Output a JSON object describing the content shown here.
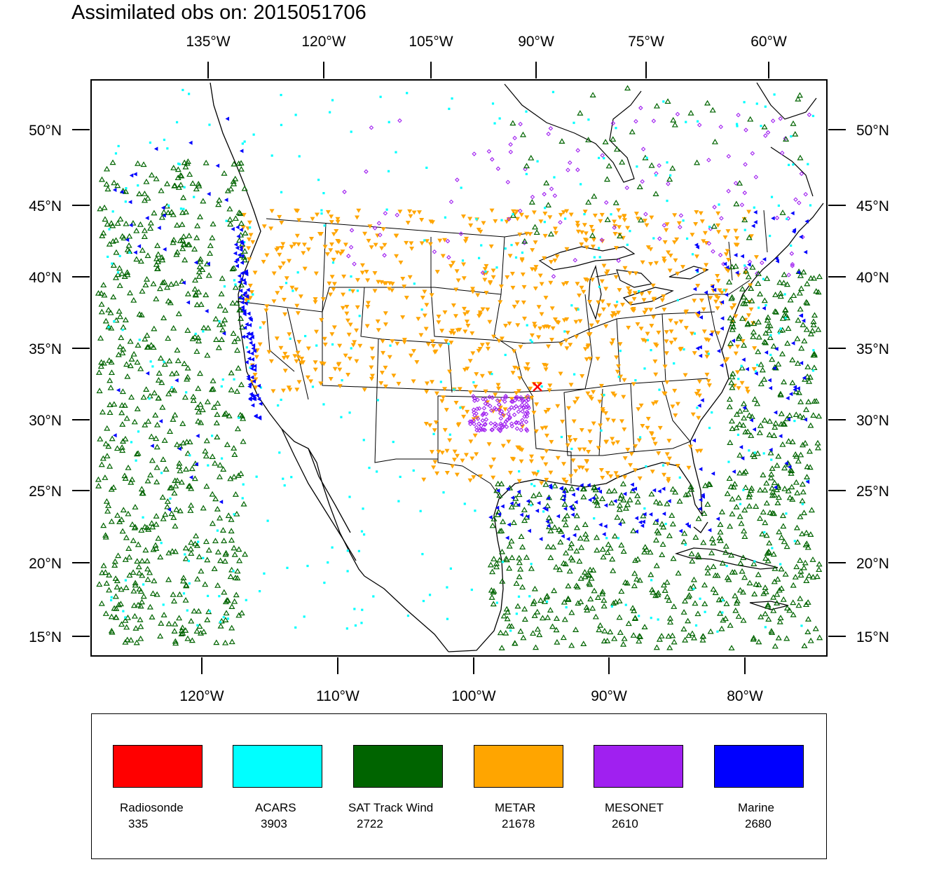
{
  "title": "Assimilated obs on: 2015051706",
  "axes": {
    "top_lon_labels": [
      "135°W",
      "120°W",
      "105°W",
      "90°W",
      "75°W",
      "60°W"
    ],
    "bottom_lon_labels": [
      "120°W",
      "110°W",
      "100°W",
      "90°W",
      "80°W"
    ],
    "lat_labels": [
      "50°N",
      "45°N",
      "40°N",
      "35°N",
      "30°N",
      "25°N",
      "20°N",
      "15°N"
    ]
  },
  "legend": [
    {
      "name": "Radiosonde",
      "count": "335",
      "color": "#ff0000"
    },
    {
      "name": "ACARS",
      "count": "3903",
      "color": "#00ffff"
    },
    {
      "name": "SAT Track Wind",
      "count": "2722",
      "color": "#006400"
    },
    {
      "name": "METAR",
      "count": "21678",
      "color": "#ffa500"
    },
    {
      "name": "MESONET",
      "count": "2610",
      "color": "#a020f0"
    },
    {
      "name": "Marine",
      "count": "2680",
      "color": "#0000ff"
    }
  ],
  "map": {
    "radiosonde_marker": "x",
    "radiosonde_lon": -95.5,
    "radiosonde_lat": 36.3
  }
}
